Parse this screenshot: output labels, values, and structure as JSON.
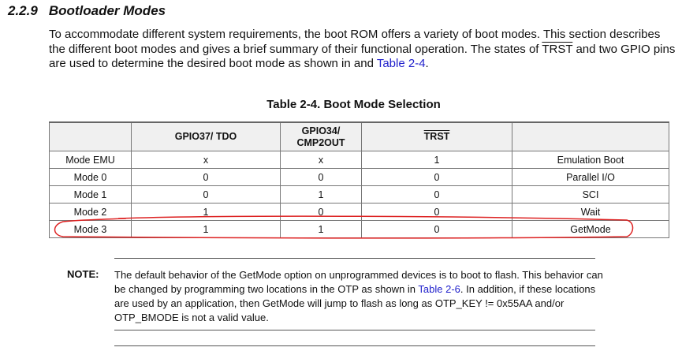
{
  "section": {
    "number": "2.2.9",
    "title": "Bootloader Modes"
  },
  "intro": {
    "text_before": "To accommodate different system requirements, the boot ROM offers a variety of boot modes. This section describes the different boot modes and gives a brief summary of their functional operation. The states of ",
    "trst": "TRST",
    "text_after": " and two GPIO pins are used to determine the desired boot mode as shown in and ",
    "link": "Table 2-4",
    "end": "."
  },
  "table": {
    "caption": "Table 2-4. Boot Mode Selection",
    "headers": [
      "",
      "GPIO37/ TDO",
      "GPIO34/ CMP2OUT",
      "TRST",
      ""
    ],
    "rows": [
      [
        "Mode EMU",
        "x",
        "x",
        "1",
        "Emulation Boot"
      ],
      [
        "Mode 0",
        "0",
        "0",
        "0",
        "Parallel I/O"
      ],
      [
        "Mode 1",
        "0",
        "1",
        "0",
        "SCI"
      ],
      [
        "Mode 2",
        "1",
        "0",
        "0",
        "Wait"
      ],
      [
        "Mode 3",
        "1",
        "1",
        "0",
        "GetMode"
      ]
    ],
    "highlight_color": "#dd2222"
  },
  "note": {
    "label": "NOTE:",
    "text_before": "The default behavior of the GetMode option on unprogrammed devices is to boot to flash. This behavior can be changed by programming two locations in the OTP as shown in ",
    "link": "Table 2-6",
    "text_after": ". In addition, if these locations are used by an application, then GetMode will jump to flash as long as OTP_KEY != 0x55AA and/or OTP_BMODE is not a valid value."
  }
}
